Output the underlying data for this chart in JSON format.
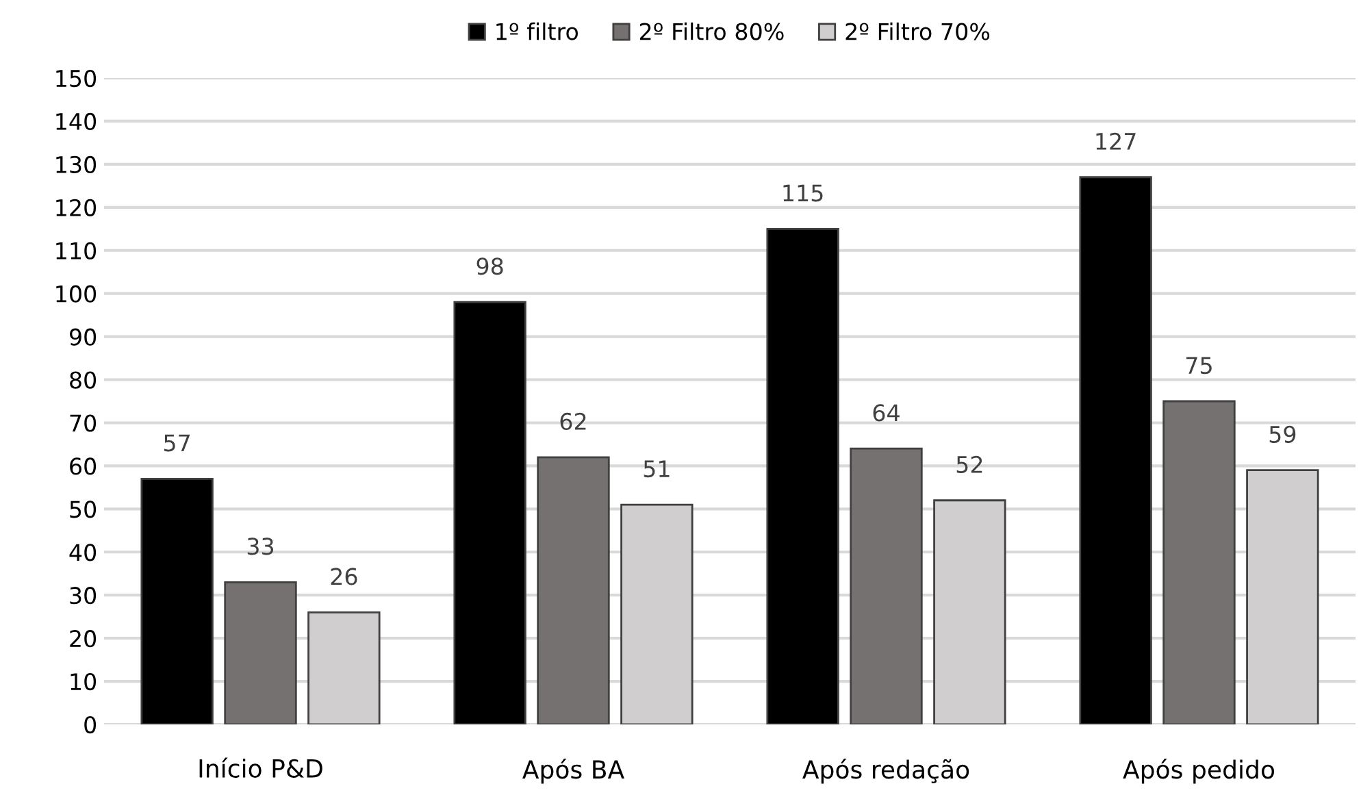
{
  "chart_data": {
    "type": "bar",
    "categories": [
      "Início P&D",
      "Após BA",
      "Após redação",
      "Após pedido"
    ],
    "series": [
      {
        "name": "1º filtro",
        "color": "#000000",
        "values": [
          57,
          98,
          115,
          127
        ]
      },
      {
        "name": "2º Filtro 80%",
        "color": "#767171",
        "values": [
          33,
          62,
          64,
          75
        ]
      },
      {
        "name": "2º Filtro 70%",
        "color": "#d0cece",
        "values": [
          26,
          51,
          52,
          59
        ]
      }
    ],
    "ylim": [
      0,
      150
    ],
    "yticks": [
      0,
      10,
      20,
      30,
      40,
      50,
      60,
      70,
      80,
      90,
      100,
      110,
      120,
      130,
      140,
      150
    ],
    "grid": "y",
    "legend": "top",
    "data_labels": true
  }
}
